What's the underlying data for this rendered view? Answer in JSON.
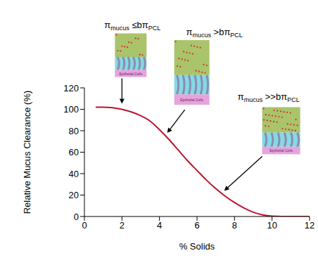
{
  "chart_data": {
    "type": "line",
    "x_label": "% Solids",
    "y_label": "Relative Mucus Clearance (%)",
    "x": [
      0.6,
      1,
      1.5,
      2,
      2.5,
      3,
      3.5,
      4,
      4.5,
      5,
      5.5,
      6,
      6.5,
      7,
      7.5,
      8,
      8.5,
      9,
      9.5,
      10,
      10.5,
      11,
      11.5,
      12
    ],
    "values": [
      102,
      102,
      101.5,
      100,
      97.5,
      94,
      89,
      81,
      72,
      62,
      52,
      43,
      34,
      26,
      19,
      13,
      8,
      4,
      1.5,
      0.3,
      0,
      0,
      0,
      0
    ],
    "color": "#b8152c",
    "xlim": [
      0,
      12
    ],
    "xticks": [
      0,
      2,
      4,
      6,
      8,
      10,
      12
    ],
    "ylim": [
      0,
      120
    ],
    "yticks": [
      0,
      20,
      40,
      60,
      80,
      100,
      120
    ],
    "grid": false,
    "annotations": [
      {
        "parts": [
          {
            "text": "π"
          },
          {
            "text": "mucus",
            "sub": true
          },
          {
            "text": " ≤bπ"
          },
          {
            "text": "PCL",
            "sub": true
          }
        ],
        "x": 2,
        "y": 100,
        "image_label": "Epithelial Cells"
      },
      {
        "parts": [
          {
            "text": "π"
          },
          {
            "text": "mucus",
            "sub": true
          },
          {
            "text": " >bπ"
          },
          {
            "text": "PCL",
            "sub": true
          }
        ],
        "x": 4.3,
        "y": 76,
        "image_label": "Epithelial Cells"
      },
      {
        "parts": [
          {
            "text": "π"
          },
          {
            "text": "mucus",
            "sub": true
          },
          {
            "text": " >>bπ"
          },
          {
            "text": "PCL",
            "sub": true
          }
        ],
        "x": 7.3,
        "y": 22,
        "image_label": "Epithelial Cells"
      }
    ]
  }
}
